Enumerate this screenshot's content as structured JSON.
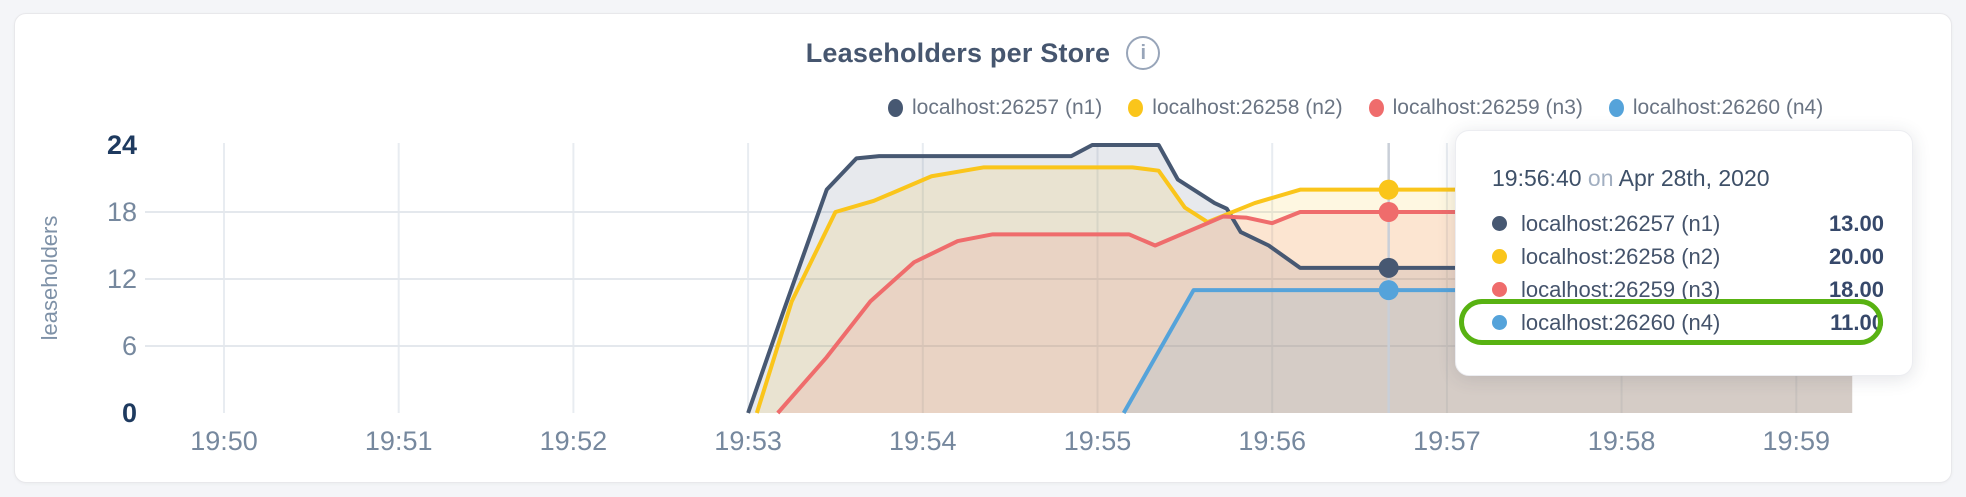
{
  "page": {
    "background": "#f4f5f8",
    "card_background": "#ffffff"
  },
  "header": {
    "title": "Leaseholders per Store",
    "info_icon": "i"
  },
  "chart_data": {
    "type": "area",
    "title": "Leaseholders per Store",
    "ylabel": "leaseholders",
    "ylim": [
      0,
      24
    ],
    "grid": true,
    "legend_position": "top",
    "yticks": [
      {
        "value": 0,
        "label": "0",
        "bold": true,
        "gridline": false
      },
      {
        "value": 6,
        "label": "6",
        "bold": false,
        "gridline": true
      },
      {
        "value": 12,
        "label": "12",
        "bold": false,
        "gridline": true
      },
      {
        "value": 18,
        "label": "18",
        "bold": false,
        "gridline": true
      },
      {
        "value": 24,
        "label": "24",
        "bold": true,
        "gridline": false
      }
    ],
    "xticks": [
      {
        "t": 0,
        "label": "19:50"
      },
      {
        "t": 1,
        "label": "19:51"
      },
      {
        "t": 2,
        "label": "19:52"
      },
      {
        "t": 3,
        "label": "19:53"
      },
      {
        "t": 4,
        "label": "19:54"
      },
      {
        "t": 5,
        "label": "19:55"
      },
      {
        "t": 6,
        "label": "19:56"
      },
      {
        "t": 7,
        "label": "19:57"
      },
      {
        "t": 8,
        "label": "19:58"
      },
      {
        "t": 9,
        "label": "19:59"
      }
    ],
    "x_end_t": 9.32,
    "series": [
      {
        "name": "localhost:26257 (n1)",
        "color": "#475872",
        "points": [
          [
            3.0,
            0
          ],
          [
            3.2,
            9
          ],
          [
            3.45,
            20
          ],
          [
            3.62,
            22.8
          ],
          [
            3.75,
            23
          ],
          [
            4.85,
            23
          ],
          [
            4.97,
            24
          ],
          [
            5.35,
            24
          ],
          [
            5.46,
            20.9
          ],
          [
            5.67,
            18.8
          ],
          [
            5.74,
            18.3
          ],
          [
            5.82,
            16.2
          ],
          [
            5.98,
            15.0
          ],
          [
            6.16,
            13
          ],
          [
            9.32,
            13
          ]
        ]
      },
      {
        "name": "localhost:26258 (n2)",
        "color": "#fac51b",
        "points": [
          [
            3.05,
            0
          ],
          [
            3.25,
            10
          ],
          [
            3.5,
            18
          ],
          [
            3.72,
            19
          ],
          [
            4.05,
            21.2
          ],
          [
            4.35,
            22
          ],
          [
            5.2,
            22
          ],
          [
            5.35,
            21.7
          ],
          [
            5.5,
            18.4
          ],
          [
            5.63,
            17.1
          ],
          [
            5.9,
            18.8
          ],
          [
            6.16,
            20
          ],
          [
            9.32,
            20
          ]
        ]
      },
      {
        "name": "localhost:26259 (n3)",
        "color": "#ef6c6c",
        "points": [
          [
            3.17,
            0
          ],
          [
            3.45,
            5
          ],
          [
            3.7,
            10
          ],
          [
            3.95,
            13.5
          ],
          [
            4.2,
            15.4
          ],
          [
            4.4,
            16
          ],
          [
            5.18,
            16
          ],
          [
            5.33,
            15.0
          ],
          [
            5.63,
            17.0
          ],
          [
            5.72,
            17.6
          ],
          [
            5.85,
            17.5
          ],
          [
            6.0,
            17.0
          ],
          [
            6.16,
            18
          ],
          [
            9.32,
            18
          ]
        ]
      },
      {
        "name": "localhost:26260 (n4)",
        "color": "#55a3da",
        "points": [
          [
            5.15,
            0
          ],
          [
            5.55,
            11
          ],
          [
            9.32,
            11
          ]
        ]
      }
    ],
    "hover": {
      "t": 6.6667,
      "label": "19:56:40",
      "values": [
        13,
        20,
        18,
        11
      ]
    }
  },
  "tooltip": {
    "time": "19:56:40",
    "separator": "on",
    "date": "Apr 28th, 2020",
    "rows": [
      {
        "name": "localhost:26257 (n1)",
        "value": "13.00",
        "color": "#475872"
      },
      {
        "name": "localhost:26258 (n2)",
        "value": "20.00",
        "color": "#fac51b"
      },
      {
        "name": "localhost:26259 (n3)",
        "value": "18.00",
        "color": "#ef6c6c"
      },
      {
        "name": "localhost:26260 (n4)",
        "value": "11.00",
        "color": "#55a3da"
      }
    ],
    "highlight_index": 3,
    "highlight_color": "#58b212"
  }
}
